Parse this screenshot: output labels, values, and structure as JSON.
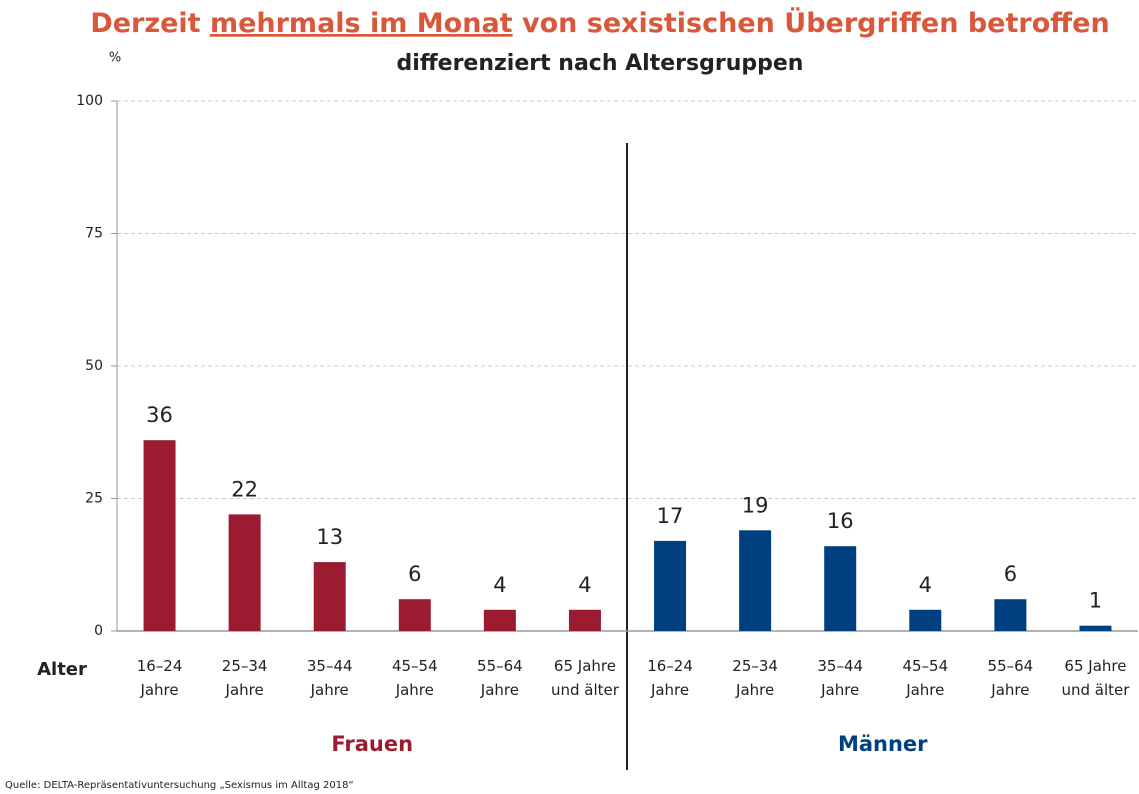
{
  "chart_data": {
    "type": "bar",
    "title_parts": [
      "Derzeit",
      "mehrmals im Monat",
      "von sexistischen Übergriffen betroffen"
    ],
    "subtitle": "differenziert nach Altersgruppen",
    "y_unit": "%",
    "x_axis_label": "Alter",
    "categories": [
      [
        "16–24",
        "Jahre"
      ],
      [
        "25–34",
        "Jahre"
      ],
      [
        "35–44",
        "Jahre"
      ],
      [
        "45–54",
        "Jahre"
      ],
      [
        "55–64",
        "Jahre"
      ],
      [
        "65 Jahre",
        "und älter"
      ],
      [
        "16–24",
        "Jahre"
      ],
      [
        "25–34",
        "Jahre"
      ],
      [
        "35–44",
        "Jahre"
      ],
      [
        "45–54",
        "Jahre"
      ],
      [
        "55–64",
        "Jahre"
      ],
      [
        "65 Jahre",
        "und älter"
      ]
    ],
    "series": [
      {
        "name": "Frauen",
        "color": "#9b1b30",
        "values": [
          36,
          22,
          13,
          6,
          4,
          4,
          null,
          null,
          null,
          null,
          null,
          null
        ]
      },
      {
        "name": "Männer",
        "color": "#004080",
        "values": [
          null,
          null,
          null,
          null,
          null,
          null,
          17,
          19,
          16,
          4,
          6,
          1
        ]
      }
    ],
    "ylim": [
      0,
      100
    ],
    "yticks": [
      0,
      25,
      50,
      75,
      100
    ],
    "grid": true,
    "source": "Quelle: DELTA-Repräsentativuntersuchung „Sexismus im Alltag 2018“"
  }
}
